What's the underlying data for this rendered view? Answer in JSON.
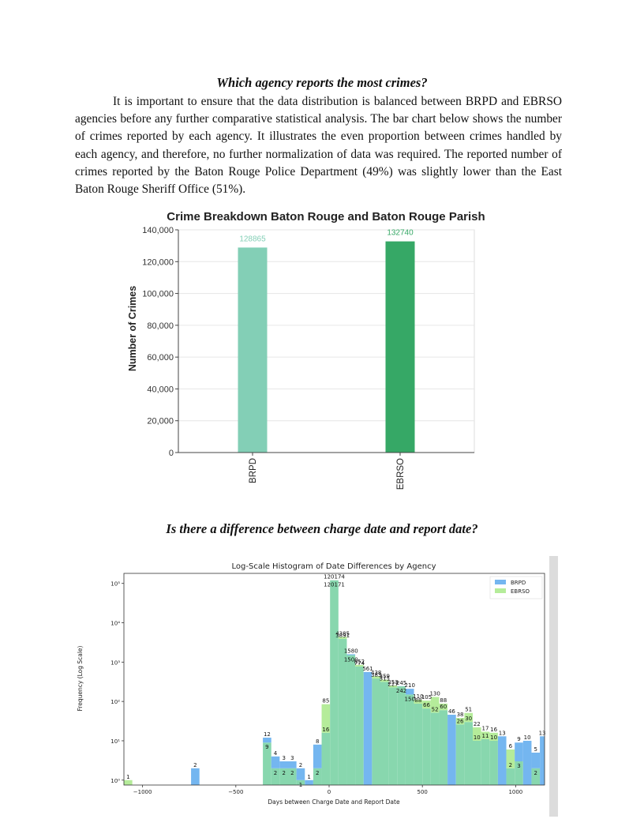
{
  "document": {
    "heading1": "Which agency reports the most crimes?",
    "paragraph": "It is important to ensure that the data distribution is balanced between BRPD and EBRSO agencies before any further comparative statistical analysis. The bar chart below shows the number of crimes reported by each agency. It illustrates the even proportion between crimes handled by each agency, and therefore, no further normalization of data was required. The reported number of crimes reported by the Baton Rouge Police Department (49%) was slightly lower than the East Baton Rouge Sheriff Office (51%).",
    "heading2": "Is there a difference between charge date and report date?"
  },
  "colors": {
    "brpd_bar": "#83cfb6",
    "ebrso_bar": "#36a866",
    "hist_brpd": "#74b6f0",
    "hist_ebrso": "#b5ec9a",
    "hist_overlap": "#88d7ae",
    "scrollbar": "#dcdcdc"
  },
  "chart_data": [
    {
      "type": "bar",
      "title": "Crime Breakdown Baton Rouge and Baton Rouge Parish",
      "xlabel": "",
      "ylabel": "Number of Crimes",
      "categories": [
        "BRPD",
        "EBRSO"
      ],
      "values": [
        128865,
        132740
      ],
      "data_labels": [
        "128865",
        "132740"
      ],
      "ylim": [
        0,
        140000
      ],
      "yticks": [
        0,
        20000,
        40000,
        60000,
        80000,
        100000,
        120000,
        140000
      ],
      "ytick_labels": [
        "0",
        "20,000",
        "40,000",
        "60,000",
        "80,000",
        "100,000",
        "120,000",
        "140,000"
      ],
      "grid": true
    },
    {
      "type": "bar",
      "subtype": "histogram",
      "title": "Log-Scale Histogram of Date Differences by Agency",
      "xlabel": "Days between Charge Date and Report Date",
      "ylabel": "Frequency (Log Scale)",
      "yscale": "log",
      "xlim": [
        -1100,
        1155
      ],
      "ylim": [
        0.75,
        180000
      ],
      "xticks": [
        -1000,
        -500,
        0,
        500,
        1000
      ],
      "xtick_labels": [
        "−1000",
        "−500",
        "0",
        "500",
        "1000"
      ],
      "ytick_labels": [
        {
          "value": 1,
          "label": "10⁰"
        },
        {
          "value": 10,
          "label": "10¹"
        },
        {
          "value": 100,
          "label": "10²"
        },
        {
          "value": 1000,
          "label": "10³"
        },
        {
          "value": 10000,
          "label": "10⁴"
        },
        {
          "value": 100000,
          "label": "10⁵"
        }
      ],
      "legend": {
        "position": "top-right",
        "entries": [
          "BRPD",
          "EBRSO"
        ]
      },
      "series": [
        {
          "name": "BRPD",
          "bins": [
            {
              "x0": -740,
              "x1": -695,
              "value": 2,
              "label": "2"
            },
            {
              "x0": -355,
              "x1": -310,
              "value": 12,
              "label": "12"
            },
            {
              "x0": -310,
              "x1": -265,
              "value": 4,
              "label": "4"
            },
            {
              "x0": -265,
              "x1": -220,
              "value": 3,
              "label": "3"
            },
            {
              "x0": -220,
              "x1": -175,
              "value": 3,
              "label": "3"
            },
            {
              "x0": -175,
              "x1": -130,
              "value": 2,
              "label": "2"
            },
            {
              "x0": -130,
              "x1": -85,
              "value": 1,
              "label": "1"
            },
            {
              "x0": -85,
              "x1": -40,
              "value": 8,
              "label": "8"
            },
            {
              "x0": -40,
              "x1": 5,
              "value": 16,
              "label": "16"
            },
            {
              "x0": 5,
              "x1": 50,
              "value": 120174,
              "label": "120174"
            },
            {
              "x0": 50,
              "x1": 95,
              "value": 3891,
              "label": "3891"
            },
            {
              "x0": 95,
              "x1": 140,
              "value": 1580,
              "label": "1580"
            },
            {
              "x0": 140,
              "x1": 185,
              "value": 774,
              "label": "774"
            },
            {
              "x0": 185,
              "x1": 230,
              "value": 561,
              "label": "561"
            },
            {
              "x0": 230,
              "x1": 275,
              "value": 383,
              "label": "383"
            },
            {
              "x0": 275,
              "x1": 320,
              "value": 315,
              "label": "315"
            },
            {
              "x0": 320,
              "x1": 365,
              "value": 227,
              "label": "227"
            },
            {
              "x0": 365,
              "x1": 410,
              "value": 245,
              "label": "245"
            },
            {
              "x0": 410,
              "x1": 455,
              "value": 210,
              "label": "210"
            },
            {
              "x0": 455,
              "x1": 500,
              "value": 88,
              "label": "88"
            },
            {
              "x0": 500,
              "x1": 545,
              "value": 66,
              "label": "66"
            },
            {
              "x0": 545,
              "x1": 590,
              "value": 52,
              "label": "52"
            },
            {
              "x0": 590,
              "x1": 635,
              "value": 60,
              "label": "60"
            },
            {
              "x0": 635,
              "x1": 680,
              "value": 46,
              "label": "46"
            },
            {
              "x0": 680,
              "x1": 725,
              "value": 26,
              "label": "26"
            },
            {
              "x0": 725,
              "x1": 770,
              "value": 30,
              "label": "30"
            },
            {
              "x0": 770,
              "x1": 815,
              "value": 10,
              "label": "10"
            },
            {
              "x0": 815,
              "x1": 860,
              "value": 11,
              "label": "11"
            },
            {
              "x0": 860,
              "x1": 905,
              "value": 10,
              "label": "10"
            },
            {
              "x0": 905,
              "x1": 950,
              "value": 13,
              "label": "13"
            },
            {
              "x0": 950,
              "x1": 995,
              "value": 2,
              "label": "2"
            },
            {
              "x0": 995,
              "x1": 1040,
              "value": 9,
              "label": "9"
            },
            {
              "x0": 1040,
              "x1": 1085,
              "value": 10,
              "label": "10"
            },
            {
              "x0": 1085,
              "x1": 1130,
              "value": 5,
              "label": "5"
            },
            {
              "x0": 1130,
              "x1": 1155,
              "value": 13,
              "label": "13"
            }
          ]
        },
        {
          "name": "EBRSO",
          "bins": [
            {
              "x0": -1100,
              "x1": -1055,
              "value": 1,
              "label": "1"
            },
            {
              "x0": -355,
              "x1": -310,
              "value": 9,
              "label": "9"
            },
            {
              "x0": -310,
              "x1": -265,
              "value": 2,
              "label": "2"
            },
            {
              "x0": -265,
              "x1": -220,
              "value": 2,
              "label": "2"
            },
            {
              "x0": -220,
              "x1": -175,
              "value": 2,
              "label": "2"
            },
            {
              "x0": -175,
              "x1": -130,
              "value": 1,
              "label": "1"
            },
            {
              "x0": -85,
              "x1": -40,
              "value": 2,
              "label": "2"
            },
            {
              "x0": -40,
              "x1": 5,
              "value": 85,
              "label": "85"
            },
            {
              "x0": 5,
              "x1": 50,
              "value": 120171,
              "label": "120171"
            },
            {
              "x0": 50,
              "x1": 95,
              "value": 4385,
              "label": "4385"
            },
            {
              "x0": 95,
              "x1": 140,
              "value": 1500,
              "label": "1500"
            },
            {
              "x0": 140,
              "x1": 185,
              "value": 852,
              "label": "852"
            },
            {
              "x0": 230,
              "x1": 275,
              "value": 438,
              "label": "438"
            },
            {
              "x0": 275,
              "x1": 320,
              "value": 359,
              "label": "359"
            },
            {
              "x0": 320,
              "x1": 365,
              "value": 253,
              "label": "253"
            },
            {
              "x0": 365,
              "x1": 410,
              "value": 242,
              "label": "242"
            },
            {
              "x0": 410,
              "x1": 455,
              "value": 150,
              "label": "150"
            },
            {
              "x0": 455,
              "x1": 500,
              "value": 110,
              "label": "110"
            },
            {
              "x0": 500,
              "x1": 545,
              "value": 105,
              "label": "105"
            },
            {
              "x0": 545,
              "x1": 590,
              "value": 130,
              "label": "130"
            },
            {
              "x0": 590,
              "x1": 635,
              "value": 88,
              "label": "88"
            },
            {
              "x0": 680,
              "x1": 725,
              "value": 38,
              "label": "38"
            },
            {
              "x0": 725,
              "x1": 770,
              "value": 51,
              "label": "51"
            },
            {
              "x0": 770,
              "x1": 815,
              "value": 22,
              "label": "22"
            },
            {
              "x0": 815,
              "x1": 860,
              "value": 17,
              "label": "17"
            },
            {
              "x0": 860,
              "x1": 905,
              "value": 16,
              "label": "16"
            },
            {
              "x0": 950,
              "x1": 995,
              "value": 6,
              "label": "6"
            },
            {
              "x0": 995,
              "x1": 1040,
              "value": 3,
              "label": "3"
            },
            {
              "x0": 1085,
              "x1": 1130,
              "value": 2,
              "label": "2"
            }
          ]
        }
      ]
    }
  ]
}
